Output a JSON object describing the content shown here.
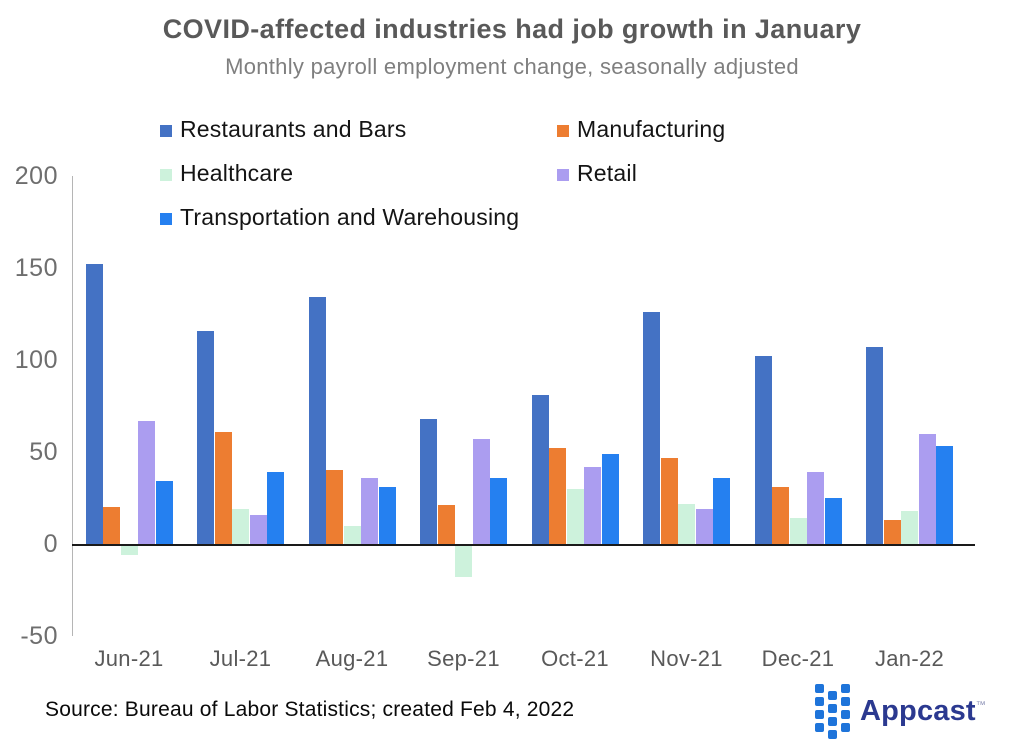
{
  "header": {
    "title": "COVID-affected industries had job growth in January",
    "subtitle": "Monthly payroll employment change, seasonally adjusted"
  },
  "chart_data": {
    "type": "bar",
    "title": "COVID-affected industries had job growth in January",
    "subtitle": "Monthly payroll employment change, seasonally adjusted",
    "xlabel": "",
    "ylabel": "",
    "ylim": [
      -50,
      200
    ],
    "yticks": [
      200,
      150,
      100,
      50,
      0,
      -50
    ],
    "grid": false,
    "legend_position": "top-left two-column",
    "categories": [
      "Jun-21",
      "Jul-21",
      "Aug-21",
      "Sep-21",
      "Oct-21",
      "Nov-21",
      "Dec-21",
      "Jan-22"
    ],
    "series": [
      {
        "name": "Restaurants and Bars",
        "color": "#4472C4",
        "values": [
          152,
          116,
          134,
          68,
          81,
          126,
          102,
          107
        ]
      },
      {
        "name": "Manufacturing",
        "color": "#ED7D31",
        "values": [
          20,
          61,
          40,
          21,
          52,
          47,
          31,
          13
        ]
      },
      {
        "name": "Healthcare",
        "color": "#CDF2DC",
        "values": [
          -5,
          19,
          10,
          -17,
          30,
          22,
          14,
          18
        ]
      },
      {
        "name": "Retail",
        "color": "#AB9DF0",
        "values": [
          67,
          16,
          36,
          57,
          42,
          19,
          39,
          60
        ]
      },
      {
        "name": "Transportation and Warehousing",
        "color": "#2580F0",
        "values": [
          34,
          39,
          31,
          36,
          49,
          36,
          25,
          53
        ]
      }
    ],
    "axis_line_color": "#b5b5b5",
    "zero_line_color": "#1a1a1a"
  },
  "footer": {
    "source": "Source: Bureau of Labor Statistics; created Feb 4, 2022",
    "brand_name": "Appcast",
    "brand_tm": "™",
    "brand_text_color": "#2B3990",
    "brand_icon_color": "#1E74DA"
  }
}
